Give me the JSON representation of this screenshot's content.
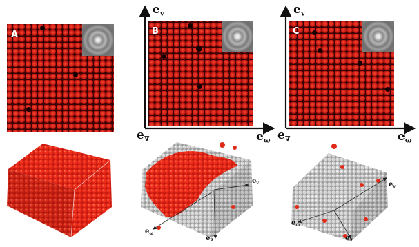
{
  "panels": [
    {
      "label": "A"
    },
    {
      "label": "B"
    },
    {
      "label": "C"
    }
  ],
  "axes": {
    "e_v": {
      "main": "e",
      "sub": "v"
    },
    "e_grad": {
      "main": "e",
      "sub": "∇"
    },
    "e_omega": {
      "main": "e",
      "sub": "ω"
    }
  },
  "colors": {
    "particle_red": "#d9231a",
    "crystal_gray": "#c9c9c9",
    "background": "#ffffff"
  }
}
